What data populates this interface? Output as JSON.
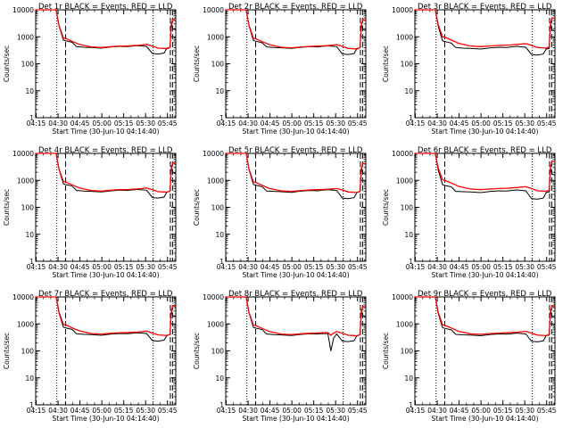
{
  "figure": {
    "xlabel": "Start Time (30-Jun-10 04:14:40)",
    "ylabel": "Counts/sec",
    "x_ticks": [
      "04:15",
      "04:30",
      "04:45",
      "05:00",
      "05:15",
      "05:30",
      "05:45"
    ],
    "y_ticks": [
      "1",
      "10",
      "100",
      "1000",
      "10000"
    ]
  },
  "colors": {
    "events": "#000000",
    "lld": "#ff0000",
    "axes": "#000000"
  },
  "chart_data": [
    {
      "type": "line",
      "title": "Det 1r BLACK = Events, RED = LLD",
      "xlabel": "Start Time (30-Jun-10 04:14:40)",
      "ylabel": "Counts/sec",
      "x_unit": "minutes after 04:14:40",
      "xlim": [
        0,
        96
      ],
      "ylim": [
        1,
        10000
      ],
      "y_scale": "log",
      "series": [
        {
          "name": "Events",
          "x": [
            0,
            14,
            16,
            19,
            21,
            25,
            28,
            33,
            38,
            45,
            52,
            58,
            63,
            66,
            70,
            76,
            80,
            84,
            88,
            90,
            92,
            93,
            94,
            96
          ],
          "y": [
            10000,
            10000,
            2500,
            750,
            700,
            620,
            430,
            410,
            400,
            380,
            420,
            440,
            430,
            450,
            470,
            440,
            240,
            230,
            250,
            380,
            400,
            3500,
            2000,
            1800
          ]
        },
        {
          "name": "LLD",
          "x": [
            0,
            14,
            16,
            19,
            21,
            25,
            30,
            38,
            45,
            52,
            58,
            63,
            66,
            70,
            76,
            80,
            84,
            88,
            90,
            92,
            93,
            94,
            96
          ],
          "y": [
            10000,
            10000,
            2600,
            900,
            850,
            680,
            520,
            420,
            400,
            430,
            450,
            460,
            470,
            480,
            520,
            450,
            380,
            370,
            360,
            400,
            2800,
            4500,
            4200
          ]
        }
      ]
    },
    {
      "type": "line",
      "title": "Det 2r BLACK = Events, RED = LLD",
      "xlabel": "Start Time (30-Jun-10 04:14:40)",
      "ylabel": "Counts/sec",
      "x_unit": "minutes after 04:14:40",
      "xlim": [
        0,
        96
      ],
      "ylim": [
        1,
        10000
      ],
      "y_scale": "log",
      "series": [
        {
          "name": "Events",
          "x": [
            0,
            14,
            16,
            19,
            21,
            25,
            28,
            33,
            38,
            45,
            52,
            58,
            63,
            66,
            70,
            76,
            80,
            84,
            88,
            90,
            92,
            93,
            94,
            96
          ],
          "y": [
            10000,
            10000,
            2500,
            720,
            680,
            600,
            420,
            400,
            390,
            370,
            410,
            430,
            420,
            440,
            460,
            430,
            230,
            220,
            240,
            370,
            390,
            3300,
            1900,
            1700
          ]
        },
        {
          "name": "LLD",
          "x": [
            0,
            14,
            16,
            19,
            21,
            25,
            30,
            38,
            45,
            52,
            58,
            63,
            66,
            70,
            76,
            80,
            84,
            88,
            90,
            92,
            93,
            94,
            96
          ],
          "y": [
            10000,
            10000,
            2600,
            880,
            830,
            660,
            510,
            410,
            390,
            420,
            440,
            450,
            460,
            470,
            510,
            440,
            370,
            360,
            350,
            390,
            2700,
            4400,
            4100
          ]
        }
      ]
    },
    {
      "type": "line",
      "title": "Det 3r BLACK = Events, RED = LLD",
      "xlabel": "Start Time (30-Jun-10 04:14:40)",
      "ylabel": "Counts/sec",
      "x_unit": "minutes after 04:14:40",
      "xlim": [
        0,
        96
      ],
      "ylim": [
        1,
        10000
      ],
      "y_scale": "log",
      "series": [
        {
          "name": "Events",
          "x": [
            0,
            14,
            16,
            19,
            21,
            25,
            28,
            33,
            38,
            45,
            52,
            58,
            63,
            66,
            70,
            76,
            80,
            84,
            88,
            90,
            92,
            93,
            94,
            96
          ],
          "y": [
            10000,
            10000,
            2400,
            700,
            660,
            580,
            400,
            380,
            370,
            350,
            390,
            410,
            400,
            420,
            440,
            410,
            220,
            210,
            230,
            350,
            370,
            3100,
            1800,
            1600
          ]
        },
        {
          "name": "LLD",
          "x": [
            0,
            14,
            16,
            19,
            21,
            25,
            30,
            38,
            45,
            52,
            58,
            63,
            66,
            70,
            76,
            80,
            84,
            88,
            90,
            92,
            93,
            94,
            96
          ],
          "y": [
            10000,
            10000,
            2800,
            1000,
            950,
            760,
            570,
            460,
            430,
            460,
            480,
            490,
            500,
            520,
            560,
            480,
            400,
            390,
            380,
            420,
            3200,
            5000,
            4800
          ]
        }
      ]
    },
    {
      "type": "line",
      "title": "Det 4r BLACK = Events, RED = LLD",
      "xlabel": "Start Time (30-Jun-10 04:14:40)",
      "ylabel": "Counts/sec",
      "x_unit": "minutes after 04:14:40",
      "xlim": [
        0,
        96
      ],
      "ylim": [
        1,
        10000
      ],
      "y_scale": "log",
      "series": [
        {
          "name": "Events",
          "x": [
            0,
            14,
            16,
            19,
            21,
            25,
            28,
            33,
            38,
            45,
            52,
            58,
            63,
            66,
            70,
            76,
            80,
            84,
            88,
            90,
            92,
            93,
            94,
            96
          ],
          "y": [
            10000,
            10000,
            2500,
            740,
            690,
            610,
            420,
            400,
            390,
            370,
            410,
            430,
            420,
            440,
            460,
            430,
            230,
            220,
            240,
            370,
            390,
            3400,
            1950,
            1750
          ]
        },
        {
          "name": "LLD",
          "x": [
            0,
            14,
            16,
            19,
            21,
            25,
            30,
            38,
            45,
            52,
            58,
            63,
            66,
            70,
            76,
            80,
            84,
            88,
            90,
            92,
            93,
            94,
            96
          ],
          "y": [
            10000,
            10000,
            2600,
            900,
            850,
            680,
            520,
            420,
            400,
            430,
            450,
            460,
            470,
            480,
            520,
            450,
            380,
            370,
            360,
            400,
            2800,
            4500,
            4200
          ]
        }
      ]
    },
    {
      "type": "line",
      "title": "Det 5r BLACK = Events, RED = LLD",
      "xlabel": "Start Time (30-Jun-10 04:14:40)",
      "ylabel": "Counts/sec",
      "x_unit": "minutes after 04:14:40",
      "xlim": [
        0,
        96
      ],
      "ylim": [
        1,
        10000
      ],
      "y_scale": "log",
      "series": [
        {
          "name": "Events",
          "x": [
            0,
            14,
            16,
            19,
            21,
            25,
            28,
            33,
            38,
            45,
            52,
            58,
            63,
            66,
            70,
            76,
            80,
            84,
            88,
            90,
            92,
            93,
            94,
            96
          ],
          "y": [
            10000,
            10000,
            2450,
            700,
            650,
            580,
            400,
            390,
            380,
            360,
            400,
            420,
            410,
            430,
            450,
            420,
            220,
            210,
            230,
            360,
            380,
            3200,
            1850,
            1650
          ]
        },
        {
          "name": "LLD",
          "x": [
            0,
            14,
            16,
            19,
            21,
            25,
            30,
            38,
            45,
            52,
            58,
            63,
            66,
            70,
            76,
            80,
            84,
            88,
            90,
            92,
            93,
            94,
            96
          ],
          "y": [
            10000,
            10000,
            2550,
            870,
            820,
            650,
            500,
            410,
            390,
            420,
            440,
            450,
            460,
            470,
            500,
            440,
            370,
            360,
            350,
            390,
            2700,
            4300,
            4000
          ]
        }
      ]
    },
    {
      "type": "line",
      "title": "Det 6r BLACK = Events, RED = LLD",
      "xlabel": "Start Time (30-Jun-10 04:14:40)",
      "ylabel": "Counts/sec",
      "x_unit": "minutes after 04:14:40",
      "xlim": [
        0,
        96
      ],
      "ylim": [
        1,
        10000
      ],
      "y_scale": "log",
      "series": [
        {
          "name": "Events",
          "x": [
            0,
            14,
            16,
            19,
            21,
            25,
            28,
            33,
            38,
            45,
            52,
            58,
            63,
            66,
            70,
            76,
            80,
            84,
            88,
            90,
            92,
            93,
            94,
            96
          ],
          "y": [
            10000,
            10000,
            2400,
            680,
            640,
            570,
            390,
            380,
            370,
            350,
            390,
            410,
            400,
            420,
            440,
            410,
            210,
            200,
            220,
            350,
            370,
            3000,
            1750,
            1550
          ]
        },
        {
          "name": "LLD",
          "x": [
            0,
            14,
            16,
            19,
            21,
            25,
            30,
            38,
            45,
            52,
            58,
            63,
            66,
            70,
            76,
            80,
            84,
            88,
            90,
            92,
            93,
            94,
            96
          ],
          "y": [
            10000,
            10000,
            2900,
            1050,
            980,
            800,
            600,
            480,
            450,
            480,
            500,
            510,
            520,
            540,
            580,
            500,
            410,
            400,
            390,
            430,
            3300,
            5200,
            5000
          ]
        }
      ]
    },
    {
      "type": "line",
      "title": "Det 7r BLACK = Events, RED = LLD",
      "xlabel": "Start Time (30-Jun-10 04:14:40)",
      "ylabel": "Counts/sec",
      "x_unit": "minutes after 04:14:40",
      "xlim": [
        0,
        96
      ],
      "ylim": [
        1,
        10000
      ],
      "y_scale": "log",
      "series": [
        {
          "name": "Events",
          "x": [
            0,
            14,
            16,
            19,
            21,
            25,
            28,
            33,
            38,
            45,
            52,
            58,
            63,
            66,
            70,
            76,
            80,
            84,
            88,
            90,
            92,
            93,
            94,
            96
          ],
          "y": [
            10000,
            10000,
            2500,
            750,
            700,
            620,
            430,
            410,
            400,
            380,
            420,
            440,
            430,
            450,
            470,
            440,
            240,
            230,
            250,
            380,
            400,
            3500,
            2000,
            1800
          ]
        },
        {
          "name": "LLD",
          "x": [
            0,
            14,
            16,
            19,
            21,
            25,
            30,
            38,
            45,
            52,
            58,
            63,
            66,
            70,
            76,
            80,
            84,
            88,
            90,
            92,
            93,
            94,
            96
          ],
          "y": [
            10000,
            10000,
            2700,
            950,
            900,
            720,
            550,
            440,
            420,
            450,
            470,
            480,
            490,
            500,
            540,
            460,
            390,
            380,
            370,
            410,
            2900,
            4700,
            4400
          ]
        }
      ]
    },
    {
      "type": "line",
      "title": "Det 8r BLACK = Events, RED = LLD",
      "xlabel": "Start Time (30-Jun-10 04:14:40)",
      "ylabel": "Counts/sec",
      "x_unit": "minutes after 04:14:40",
      "xlim": [
        0,
        96
      ],
      "ylim": [
        1,
        10000
      ],
      "y_scale": "log",
      "series": [
        {
          "name": "Events",
          "x": [
            0,
            14,
            16,
            19,
            21,
            25,
            28,
            33,
            38,
            45,
            52,
            58,
            63,
            66,
            70,
            72,
            74,
            76,
            80,
            84,
            88,
            90,
            92,
            93,
            94,
            96
          ],
          "y": [
            10000,
            10000,
            2500,
            740,
            690,
            610,
            420,
            400,
            390,
            370,
            410,
            430,
            420,
            440,
            430,
            100,
            300,
            420,
            230,
            220,
            240,
            370,
            390,
            3400,
            1950,
            1750
          ]
        },
        {
          "name": "LLD",
          "x": [
            0,
            14,
            16,
            19,
            21,
            25,
            30,
            38,
            45,
            52,
            58,
            63,
            66,
            70,
            72,
            74,
            76,
            80,
            84,
            88,
            90,
            92,
            93,
            94,
            96
          ],
          "y": [
            10000,
            10000,
            2600,
            900,
            850,
            680,
            520,
            420,
            400,
            430,
            450,
            460,
            470,
            480,
            380,
            450,
            520,
            450,
            380,
            370,
            360,
            400,
            2800,
            4500,
            4200
          ]
        }
      ]
    },
    {
      "type": "line",
      "title": "Det 9r BLACK = Events, RED = LLD",
      "xlabel": "Start Time (30-Jun-10 04:14:40)",
      "ylabel": "Counts/sec",
      "x_unit": "minutes after 04:14:40",
      "xlim": [
        0,
        96
      ],
      "ylim": [
        1,
        10000
      ],
      "y_scale": "log",
      "series": [
        {
          "name": "Events",
          "x": [
            0,
            14,
            16,
            19,
            21,
            25,
            28,
            33,
            38,
            45,
            52,
            58,
            63,
            66,
            70,
            76,
            80,
            84,
            88,
            90,
            92,
            93,
            94,
            96
          ],
          "y": [
            10000,
            10000,
            2450,
            720,
            680,
            600,
            410,
            395,
            385,
            365,
            405,
            425,
            415,
            435,
            455,
            425,
            225,
            215,
            235,
            365,
            385,
            3300,
            1900,
            1700
          ]
        },
        {
          "name": "LLD",
          "x": [
            0,
            14,
            16,
            19,
            21,
            25,
            30,
            38,
            45,
            52,
            58,
            63,
            66,
            70,
            76,
            80,
            84,
            88,
            90,
            92,
            93,
            94,
            96
          ],
          "y": [
            10000,
            10000,
            2650,
            920,
            870,
            700,
            530,
            430,
            410,
            440,
            460,
            470,
            480,
            490,
            530,
            455,
            385,
            375,
            365,
            405,
            2850,
            4600,
            4300
          ]
        }
      ]
    }
  ],
  "markers": {
    "x_unit": "minutes after 04:14:40",
    "dotted": [
      14.5,
      80.5
    ],
    "dashed": [
      20.5,
      92.3,
      93.8
    ]
  }
}
